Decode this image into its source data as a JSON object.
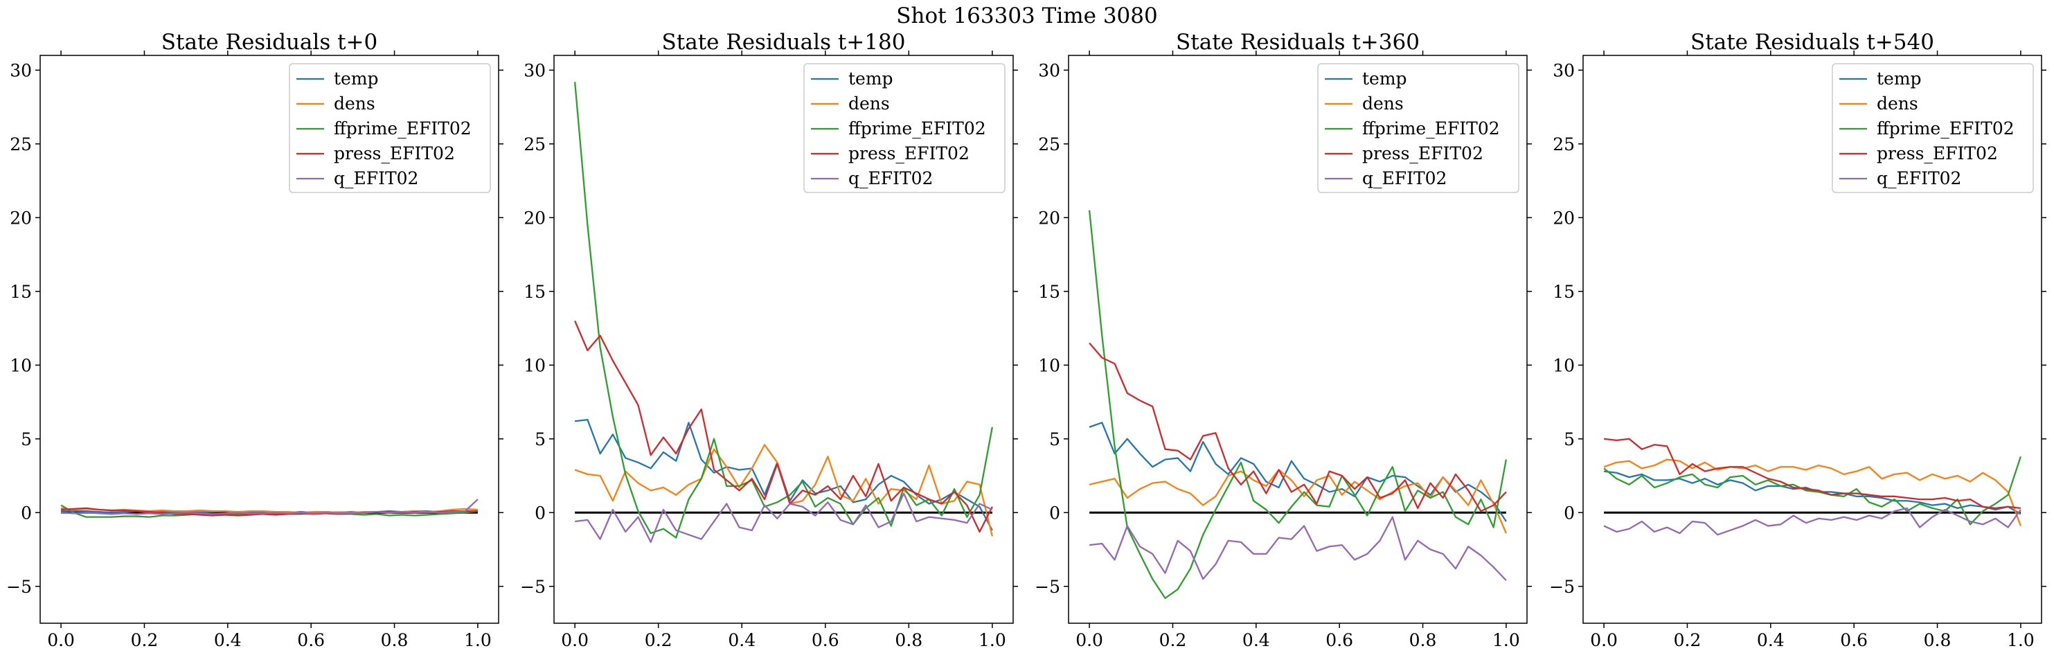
{
  "figure": {
    "suptitle": "Shot 163303   Time 3080"
  },
  "colors": {
    "temp": "#1f77b4",
    "dens": "#ff7f0e",
    "ffprime_EFIT02": "#2ca02c",
    "press_EFIT02": "#d62728",
    "q_EFIT02": "#9467bd",
    "zero_line": "#000000"
  },
  "chart_data": [
    {
      "type": "line",
      "title": "State Residuals t+0",
      "xlim": [
        -0.05,
        1.05
      ],
      "ylim": [
        -7.5,
        31
      ],
      "xticks": [
        0.0,
        0.2,
        0.4,
        0.6,
        0.8,
        1.0
      ],
      "xtick_labels": [
        "0.0",
        "0.2",
        "0.4",
        "0.6",
        "0.8",
        "1.0"
      ],
      "yticks": [
        -5,
        0,
        5,
        10,
        15,
        20,
        25,
        30
      ],
      "ytick_labels": [
        "−5",
        "0",
        "5",
        "10",
        "15",
        "20",
        "25",
        "30"
      ],
      "legend_position": "upper-right",
      "reference_line": 0,
      "x": [
        0.0,
        0.0303,
        0.0606,
        0.0909,
        0.1212,
        0.1515,
        0.1818,
        0.2121,
        0.2424,
        0.2727,
        0.303,
        0.3333,
        0.3636,
        0.3939,
        0.4242,
        0.4545,
        0.4848,
        0.5152,
        0.5455,
        0.5758,
        0.6061,
        0.6364,
        0.6667,
        0.697,
        0.7273,
        0.7576,
        0.7879,
        0.8182,
        0.8485,
        0.8788,
        0.9091,
        0.9394,
        0.9697,
        1.0
      ],
      "series": [
        {
          "name": "temp",
          "values": [
            0.1,
            0.1,
            0.1,
            0.05,
            0.0,
            0.05,
            0.1,
            0.0,
            0.05,
            0.0,
            0.05,
            0.0,
            0.05,
            0.1,
            0.0,
            0.05,
            0.0,
            0.05,
            0.0,
            0.05,
            0.0,
            0.05,
            0.0,
            0.05,
            0.0,
            0.05,
            0.1,
            0.05,
            0.1,
            0.1,
            0.05,
            0.1,
            0.1,
            0.1
          ]
        },
        {
          "name": "dens",
          "values": [
            0.3,
            0.2,
            0.25,
            0.2,
            0.15,
            0.2,
            0.15,
            0.1,
            0.15,
            0.1,
            0.1,
            0.15,
            0.1,
            0.1,
            0.05,
            0.1,
            0.1,
            0.05,
            0.05,
            0.0,
            0.05,
            0.05,
            0.0,
            0.0,
            0.05,
            0.05,
            0.0,
            0.05,
            0.1,
            0.05,
            0.1,
            0.2,
            0.25,
            0.2
          ]
        },
        {
          "name": "ffprime_EFIT02",
          "values": [
            0.5,
            0.0,
            -0.3,
            -0.3,
            -0.3,
            -0.25,
            -0.25,
            -0.3,
            -0.2,
            -0.2,
            -0.15,
            -0.1,
            -0.1,
            -0.1,
            -0.1,
            -0.1,
            -0.05,
            -0.05,
            -0.1,
            -0.1,
            -0.05,
            -0.05,
            -0.1,
            -0.1,
            -0.15,
            -0.1,
            -0.2,
            -0.15,
            -0.2,
            -0.15,
            -0.1,
            -0.05,
            0.0,
            0.1
          ]
        },
        {
          "name": "press_EFIT02",
          "values": [
            0.2,
            0.25,
            0.3,
            0.2,
            0.15,
            0.15,
            0.1,
            0.05,
            0.0,
            -0.1,
            -0.1,
            -0.15,
            -0.2,
            -0.15,
            -0.2,
            -0.15,
            -0.1,
            -0.15,
            -0.1,
            -0.05,
            -0.1,
            -0.05,
            -0.1,
            -0.05,
            0.0,
            0.05,
            0.05,
            0.0,
            0.05,
            0.0,
            0.05,
            0.1,
            0.1,
            0.1
          ]
        },
        {
          "name": "q_EFIT02",
          "values": [
            0.0,
            -0.05,
            0.0,
            -0.05,
            -0.1,
            -0.05,
            -0.1,
            -0.05,
            -0.1,
            -0.05,
            0.0,
            -0.05,
            -0.1,
            -0.05,
            0.0,
            -0.05,
            -0.05,
            0.0,
            -0.05,
            0.0,
            -0.05,
            0.0,
            -0.05,
            -0.05,
            0.0,
            0.05,
            0.0,
            0.05,
            0.0,
            0.05,
            0.0,
            0.05,
            0.1,
            0.9
          ]
        }
      ]
    },
    {
      "type": "line",
      "title": "State Residuals t+180",
      "xlim": [
        -0.05,
        1.05
      ],
      "ylim": [
        -7.5,
        31
      ],
      "xticks": [
        0.0,
        0.2,
        0.4,
        0.6,
        0.8,
        1.0
      ],
      "xtick_labels": [
        "0.0",
        "0.2",
        "0.4",
        "0.6",
        "0.8",
        "1.0"
      ],
      "yticks": [
        -5,
        0,
        5,
        10,
        15,
        20,
        25,
        30
      ],
      "ytick_labels": [
        "−5",
        "0",
        "5",
        "10",
        "15",
        "20",
        "25",
        "30"
      ],
      "legend_position": "upper-right",
      "reference_line": 0,
      "x": [
        0.0,
        0.0303,
        0.0606,
        0.0909,
        0.1212,
        0.1515,
        0.1818,
        0.2121,
        0.2424,
        0.2727,
        0.303,
        0.3333,
        0.3636,
        0.3939,
        0.4242,
        0.4545,
        0.4848,
        0.5152,
        0.5455,
        0.5758,
        0.6061,
        0.6364,
        0.6667,
        0.697,
        0.7273,
        0.7576,
        0.7879,
        0.8182,
        0.8485,
        0.8788,
        0.9091,
        0.9394,
        0.9697,
        1.0
      ],
      "series": [
        {
          "name": "temp",
          "values": [
            6.2,
            6.3,
            4.0,
            5.3,
            3.7,
            3.4,
            3.0,
            4.1,
            3.5,
            6.1,
            3.6,
            2.7,
            3.1,
            2.9,
            3.0,
            1.2,
            3.4,
            0.8,
            2.2,
            1.3,
            1.5,
            1.8,
            0.7,
            0.9,
            1.9,
            2.5,
            2.1,
            1.2,
            0.6,
            0.9,
            1.4,
            0.9,
            0.4,
            -1.2
          ]
        },
        {
          "name": "dens",
          "values": [
            2.9,
            2.6,
            2.5,
            0.8,
            2.8,
            2.0,
            1.5,
            1.7,
            1.2,
            1.9,
            2.3,
            4.3,
            3.1,
            1.7,
            3.0,
            4.6,
            3.4,
            0.6,
            0.8,
            1.9,
            3.8,
            1.2,
            0.8,
            2.3,
            0.6,
            1.6,
            1.5,
            0.9,
            3.2,
            0.6,
            0.8,
            2.1,
            1.9,
            -1.6
          ]
        },
        {
          "name": "ffprime_EFIT02",
          "values": [
            29.2,
            19.5,
            11.2,
            6.5,
            2.6,
            0.1,
            -1.4,
            -1.1,
            -1.7,
            0.9,
            2.3,
            5.0,
            1.8,
            1.8,
            2.2,
            0.4,
            0.7,
            1.2,
            2.1,
            0.4,
            1.0,
            0.6,
            -0.8,
            0.3,
            1.0,
            -0.9,
            1.7,
            0.5,
            0.9,
            -0.2,
            1.6,
            -0.3,
            1.2,
            5.8
          ]
        },
        {
          "name": "press_EFIT02",
          "values": [
            13.0,
            11.0,
            12.0,
            10.3,
            8.8,
            7.3,
            3.9,
            5.1,
            4.0,
            5.7,
            7.0,
            2.9,
            2.2,
            1.5,
            2.3,
            0.9,
            3.3,
            0.6,
            1.5,
            1.2,
            1.8,
            0.9,
            2.5,
            1.1,
            3.3,
            0.8,
            1.7,
            1.3,
            0.9,
            0.6,
            1.4,
            0.5,
            -1.3,
            0.4
          ]
        },
        {
          "name": "q_EFIT02",
          "values": [
            -0.6,
            -0.5,
            -1.8,
            0.2,
            -1.3,
            -0.3,
            -2.0,
            0.2,
            -1.2,
            -1.5,
            -1.8,
            -0.6,
            0.6,
            -1.0,
            -1.2,
            0.5,
            -0.4,
            0.6,
            0.4,
            -0.2,
            0.7,
            -0.5,
            -0.8,
            0.5,
            -1.0,
            -0.6,
            1.3,
            -0.6,
            -0.3,
            -0.4,
            -0.5,
            -0.7,
            0.6,
            0.2
          ]
        }
      ]
    },
    {
      "type": "line",
      "title": "State Residuals t+360",
      "xlim": [
        -0.05,
        1.05
      ],
      "ylim": [
        -7.5,
        31
      ],
      "xticks": [
        0.0,
        0.2,
        0.4,
        0.6,
        0.8,
        1.0
      ],
      "xtick_labels": [
        "0.0",
        "0.2",
        "0.4",
        "0.6",
        "0.8",
        "1.0"
      ],
      "yticks": [
        -5,
        0,
        5,
        10,
        15,
        20,
        25,
        30
      ],
      "ytick_labels": [
        "−5",
        "0",
        "5",
        "10",
        "15",
        "20",
        "25",
        "30"
      ],
      "legend_position": "upper-right",
      "reference_line": 0,
      "x": [
        0.0,
        0.0303,
        0.0606,
        0.0909,
        0.1212,
        0.1515,
        0.1818,
        0.2121,
        0.2424,
        0.2727,
        0.303,
        0.3333,
        0.3636,
        0.3939,
        0.4242,
        0.4545,
        0.4848,
        0.5152,
        0.5455,
        0.5758,
        0.6061,
        0.6364,
        0.6667,
        0.697,
        0.7273,
        0.7576,
        0.7879,
        0.8182,
        0.8485,
        0.8788,
        0.9091,
        0.9394,
        0.9697,
        1.0
      ],
      "series": [
        {
          "name": "temp",
          "values": [
            5.8,
            6.1,
            4.0,
            5.0,
            4.0,
            3.1,
            3.6,
            3.7,
            2.8,
            4.8,
            3.3,
            2.6,
            3.7,
            3.3,
            2.1,
            1.7,
            3.5,
            2.3,
            1.9,
            1.4,
            1.6,
            1.1,
            2.4,
            2.1,
            2.5,
            2.4,
            1.8,
            1.2,
            2.4,
            1.4,
            1.9,
            1.4,
            0.7,
            -0.6
          ]
        },
        {
          "name": "dens",
          "values": [
            1.9,
            2.1,
            2.3,
            1.0,
            1.6,
            2.0,
            2.1,
            1.6,
            1.3,
            0.5,
            1.1,
            2.5,
            2.8,
            2.2,
            1.8,
            2.9,
            2.2,
            1.1,
            2.2,
            2.5,
            1.2,
            2.1,
            1.5,
            0.9,
            1.4,
            1.8,
            2.0,
            1.0,
            2.4,
            1.5,
            0.5,
            2.2,
            0.6,
            -1.4
          ]
        },
        {
          "name": "ffprime_EFIT02",
          "values": [
            20.5,
            12.0,
            4.5,
            -1.0,
            -2.8,
            -4.5,
            -5.8,
            -5.2,
            -3.8,
            -1.5,
            0.2,
            1.8,
            3.4,
            0.8,
            0.2,
            -0.7,
            0.4,
            1.4,
            0.5,
            0.4,
            2.5,
            1.2,
            -0.2,
            1.6,
            3.1,
            0.1,
            1.5,
            1.0,
            1.4,
            -0.3,
            -0.8,
            0.9,
            -1.0,
            3.6
          ]
        },
        {
          "name": "press_EFIT02",
          "values": [
            11.5,
            10.5,
            10.1,
            8.1,
            7.6,
            7.2,
            4.3,
            4.2,
            3.6,
            5.2,
            5.4,
            3.0,
            1.9,
            2.8,
            1.3,
            2.9,
            1.4,
            1.9,
            0.6,
            2.8,
            2.5,
            1.6,
            2.4,
            1.0,
            1.3,
            2.2,
            0.3,
            2.0,
            1.0,
            2.6,
            1.5,
            0.1,
            0.5,
            1.4
          ]
        },
        {
          "name": "q_EFIT02",
          "values": [
            -2.2,
            -2.1,
            -3.2,
            -0.9,
            -2.3,
            -2.8,
            -4.1,
            -1.9,
            -2.6,
            -4.5,
            -3.5,
            -1.9,
            -2.0,
            -2.8,
            -2.8,
            -1.7,
            -1.8,
            -0.9,
            -2.6,
            -2.3,
            -2.2,
            -3.2,
            -2.8,
            -1.9,
            -0.3,
            -3.2,
            -1.9,
            -2.5,
            -2.8,
            -3.8,
            -2.3,
            -2.9,
            -3.7,
            -4.6
          ]
        }
      ]
    },
    {
      "type": "line",
      "title": "State Residuals t+540",
      "xlim": [
        -0.05,
        1.05
      ],
      "ylim": [
        -7.5,
        31
      ],
      "xticks": [
        0.0,
        0.2,
        0.4,
        0.6,
        0.8,
        1.0
      ],
      "xtick_labels": [
        "0.0",
        "0.2",
        "0.4",
        "0.6",
        "0.8",
        "1.0"
      ],
      "yticks": [
        -5,
        0,
        5,
        10,
        15,
        20,
        25,
        30
      ],
      "ytick_labels": [
        "−5",
        "0",
        "5",
        "10",
        "15",
        "20",
        "25",
        "30"
      ],
      "legend_position": "upper-right",
      "reference_line": 0,
      "x": [
        0.0,
        0.0303,
        0.0606,
        0.0909,
        0.1212,
        0.1515,
        0.1818,
        0.2121,
        0.2424,
        0.2727,
        0.303,
        0.3333,
        0.3636,
        0.3939,
        0.4242,
        0.4545,
        0.4848,
        0.5152,
        0.5455,
        0.5758,
        0.6061,
        0.6364,
        0.6667,
        0.697,
        0.7273,
        0.7576,
        0.7879,
        0.8182,
        0.8485,
        0.8788,
        0.9091,
        0.9394,
        0.9697,
        1.0
      ],
      "series": [
        {
          "name": "temp",
          "values": [
            2.8,
            2.7,
            2.4,
            2.6,
            2.2,
            2.2,
            2.3,
            2.0,
            2.3,
            1.9,
            2.2,
            2.0,
            1.5,
            1.8,
            1.8,
            1.6,
            1.7,
            1.4,
            1.4,
            1.3,
            1.1,
            1.1,
            1.0,
            0.8,
            0.8,
            0.7,
            0.5,
            0.6,
            0.3,
            0.5,
            0.4,
            0.2,
            0.4,
            -0.1
          ]
        },
        {
          "name": "dens",
          "values": [
            3.1,
            3.4,
            3.5,
            3.0,
            3.2,
            3.6,
            3.5,
            3.0,
            3.4,
            2.9,
            3.1,
            3.0,
            3.2,
            2.8,
            3.1,
            3.1,
            2.9,
            3.2,
            3.0,
            2.6,
            2.8,
            3.1,
            2.3,
            2.6,
            2.7,
            2.2,
            2.6,
            2.3,
            2.5,
            2.1,
            2.7,
            2.2,
            1.4,
            -0.9
          ]
        },
        {
          "name": "ffprime_EFIT02",
          "values": [
            3.0,
            2.3,
            1.9,
            2.5,
            1.7,
            2.0,
            2.4,
            2.6,
            1.9,
            1.7,
            2.4,
            2.5,
            1.9,
            2.2,
            1.8,
            1.9,
            1.5,
            1.4,
            1.2,
            1.1,
            1.6,
            0.7,
            0.4,
            0.9,
            0.1,
            0.6,
            0.3,
            0.1,
            0.9,
            -0.8,
            0.1,
            0.6,
            1.2,
            3.8
          ]
        },
        {
          "name": "press_EFIT02",
          "values": [
            5.0,
            4.9,
            5.0,
            4.3,
            4.6,
            4.5,
            2.6,
            3.3,
            2.8,
            3.0,
            3.1,
            3.1,
            2.7,
            2.3,
            2.1,
            1.7,
            1.6,
            1.5,
            1.2,
            1.3,
            1.3,
            1.2,
            1.1,
            1.1,
            1.0,
            0.9,
            0.9,
            1.0,
            0.8,
            0.9,
            0.4,
            0.3,
            0.4,
            0.3
          ]
        },
        {
          "name": "q_EFIT02",
          "values": [
            -0.9,
            -1.3,
            -1.1,
            -0.6,
            -1.3,
            -1.0,
            -1.4,
            -0.6,
            -0.7,
            -1.5,
            -1.2,
            -0.9,
            -0.5,
            -0.9,
            -0.8,
            -0.2,
            -0.7,
            -0.4,
            -0.5,
            -0.3,
            -0.5,
            -0.2,
            -0.4,
            0.1,
            0.3,
            -1.0,
            -0.3,
            0.2,
            -0.2,
            -0.6,
            -0.8,
            -0.4,
            -1.0,
            0.2
          ]
        }
      ]
    }
  ]
}
